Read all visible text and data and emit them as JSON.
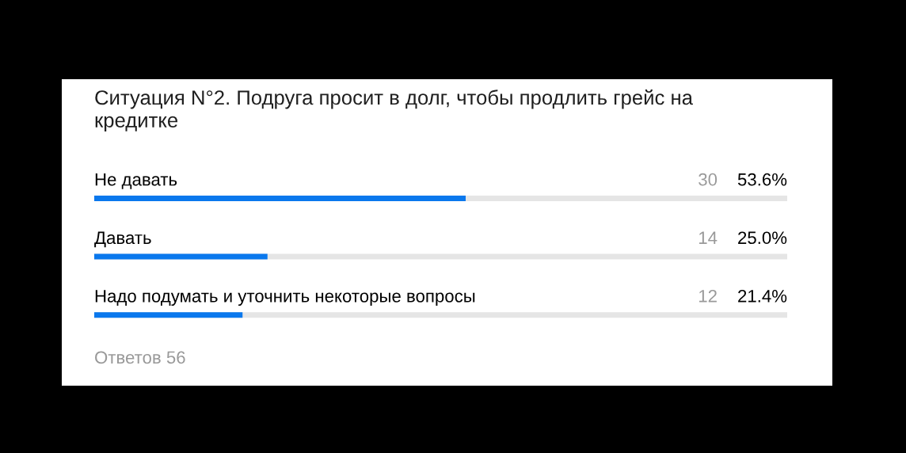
{
  "chart_data": {
    "type": "bar",
    "orientation": "horizontal",
    "title": "Ситуация N°2. Подруга просит в долг, чтобы продлить грейс на кредитке",
    "categories": [
      "Не давать",
      "Давать",
      "Надо подумать и уточнить некоторые вопросы"
    ],
    "values": [
      53.6,
      25.0,
      21.4
    ],
    "color": "#0a78ed",
    "value_labels": [
      "53.6%",
      "25.0%",
      "21.4%"
    ],
    "tick_labels": "y",
    "annotations": [
      "30",
      "14",
      "12",
      "Ответов 56"
    ]
  }
}
